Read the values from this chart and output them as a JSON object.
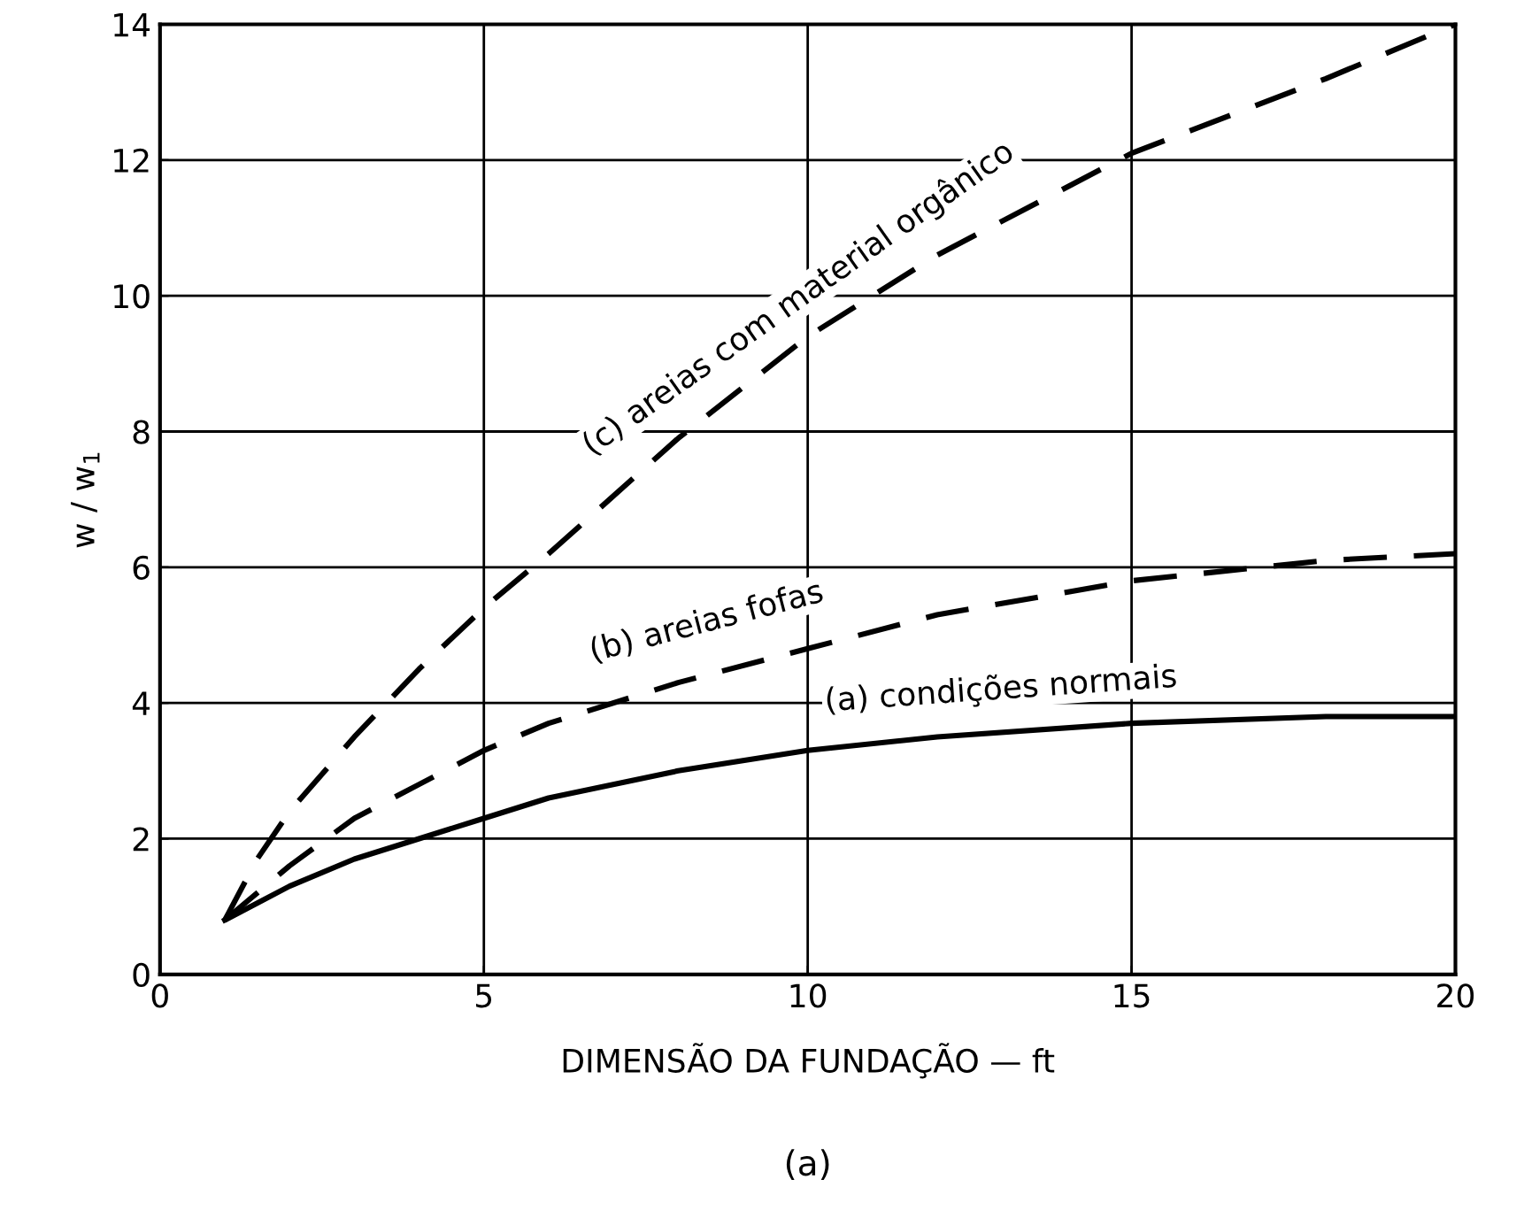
{
  "chart_data": {
    "type": "line",
    "xlabel": "DIMENSÃO DA FUNDAÇÃO — ft",
    "ylabel": "w / w$_{1}$",
    "xlim": [
      0,
      20
    ],
    "ylim": [
      0,
      14
    ],
    "xticks": [
      0,
      5,
      10,
      15,
      20
    ],
    "yticks": [
      0,
      2,
      4,
      6,
      8,
      10,
      12,
      14
    ],
    "grid": true,
    "marker": "none",
    "series": [
      {
        "color": "#000000",
        "line_style": "solid",
        "x": [
          1,
          2,
          3,
          4,
          5,
          6,
          8,
          10,
          12,
          15,
          18,
          20
        ],
        "values": [
          0.8,
          1.3,
          1.7,
          2.0,
          2.3,
          2.6,
          3.0,
          3.3,
          3.5,
          3.7,
          3.8,
          3.8
        ]
      },
      {
        "color": "#000000",
        "line_style": "dashed",
        "x": [
          1,
          2,
          3,
          4,
          5,
          6,
          8,
          10,
          12,
          15,
          18,
          20
        ],
        "values": [
          0.8,
          1.6,
          2.3,
          2.8,
          3.3,
          3.7,
          4.3,
          4.8,
          5.3,
          5.8,
          6.1,
          6.2
        ]
      },
      {
        "color": "#000000",
        "line_style": "dashed",
        "x": [
          1,
          1.5,
          2,
          3,
          4,
          5,
          6,
          8,
          10,
          12,
          15,
          18,
          20
        ],
        "values": [
          0.8,
          1.7,
          2.4,
          3.5,
          4.5,
          5.4,
          6.2,
          7.9,
          9.4,
          10.6,
          12.1,
          13.2,
          14.0
        ]
      }
    ],
    "annotations": [
      {
        "text": "(a) condições normais",
        "x": 13,
        "y": 3.6
      },
      {
        "text": "(b) areias fofas",
        "x": 8.5,
        "y": 4.6
      },
      {
        "text": "(c) areias com material orgânico",
        "x": 10,
        "y": 9.4
      },
      "(a)"
    ]
  }
}
